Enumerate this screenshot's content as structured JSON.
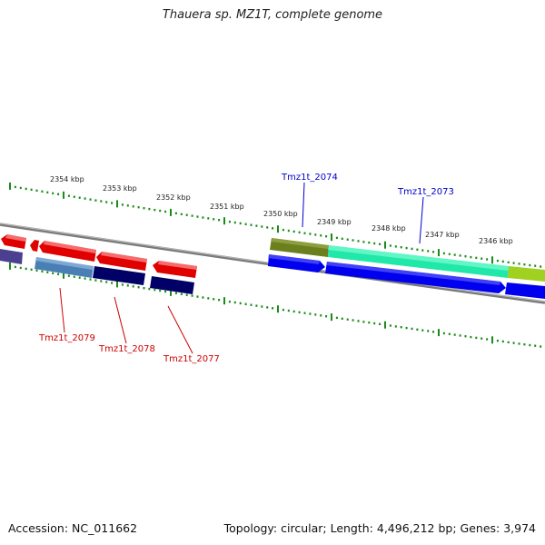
{
  "title": "Thauera sp. MZ1T, complete genome",
  "footer": {
    "accession": "Accession: NC_011662",
    "summary": "Topology: circular; Length: 4,496,212 bp; Genes: 3,974"
  },
  "ruler": {
    "tick_color": "#1a8a1a",
    "labels": [
      "2354 kbp",
      "2353 kbp",
      "2352 kbp",
      "2351 kbp",
      "2350 kbp",
      "2349 kbp",
      "2348 kbp",
      "2347 kbp",
      "2346 kbp"
    ]
  },
  "gene_labels": {
    "forward": [
      {
        "name": "Tmz1t_2074",
        "color": "#0000cc"
      },
      {
        "name": "Tmz1t_2073",
        "color": "#0000cc"
      }
    ],
    "reverse": [
      {
        "name": "Tmz1t_2079",
        "color": "#cc0000"
      },
      {
        "name": "Tmz1t_2078",
        "color": "#cc0000"
      },
      {
        "name": "Tmz1t_2077",
        "color": "#cc0000"
      }
    ]
  },
  "colors": {
    "backbone": "#808080",
    "cds_red": "#e00000",
    "cds_blue": "#0000ee",
    "cds_navy": "#000066",
    "cds_steel": "#4a7fb5",
    "cds_purple": "#4b3f8f",
    "olive": "#6b7f1f",
    "aqua": "#20e8a8",
    "lime": "#a0d020"
  }
}
